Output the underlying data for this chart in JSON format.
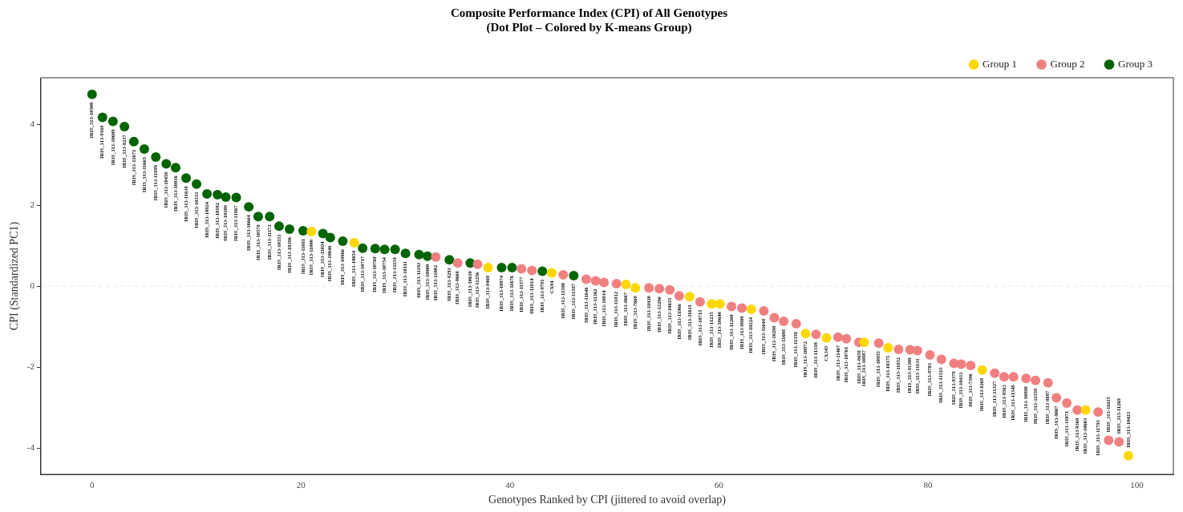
{
  "chart_data": {
    "type": "scatter",
    "title": "Composite Performance Index (CPI) of All Genotypes",
    "subtitle": "(Dot Plot – Colored by K-means Group)",
    "xlabel": "Genotypes Ranked by CPI (jittered to avoid overlap)",
    "ylabel": "CPI (Standardized PC1)",
    "xlim": [
      -4.9,
      103.5
    ],
    "xticks": [
      0,
      20,
      40,
      60,
      80,
      100
    ],
    "ylim": [
      -4.65,
      5.15
    ],
    "yticks": [
      -4,
      -2,
      0,
      2,
      4
    ],
    "legend": "top right",
    "marker": "circle",
    "grid": false,
    "ref_lines": [
      {
        "axis": "y",
        "value": 0,
        "color": "#e8e8e8",
        "line_style": "dashed"
      }
    ],
    "series": [
      {
        "name": "Group 1",
        "color": "#ffd700",
        "x": [
          21.0,
          25.1,
          37.9,
          44.0,
          51.1,
          52.0,
          57.2,
          59.3,
          60.1,
          63.1,
          68.3,
          70.3,
          73.9,
          76.2,
          85.2,
          95.1,
          99.2
        ],
        "values": [
          1.35,
          1.07,
          0.46,
          0.33,
          0.04,
          -0.04,
          -0.26,
          -0.44,
          -0.44,
          -0.57,
          -1.17,
          -1.28,
          -1.39,
          -1.52,
          -2.07,
          -3.06,
          -4.19
        ]
      },
      {
        "name": "Group 2",
        "color": "#f08080",
        "x": [
          32.9,
          35.0,
          36.9,
          41.1,
          42.1,
          45.1,
          47.3,
          48.2,
          49.0,
          50.2,
          53.3,
          54.3,
          55.3,
          56.2,
          58.2,
          61.2,
          62.2,
          64.3,
          65.3,
          66.2,
          67.4,
          69.3,
          71.4,
          72.2,
          73.4,
          75.3,
          77.2,
          78.3,
          79.0,
          80.2,
          81.3,
          82.5,
          83.2,
          84.1,
          86.4,
          87.3,
          88.2,
          89.4,
          90.3,
          91.5,
          92.3,
          93.3,
          94.3,
          96.3,
          97.3,
          98.3
        ],
        "values": [
          0.72,
          0.57,
          0.54,
          0.43,
          0.39,
          0.28,
          0.17,
          0.13,
          0.09,
          0.06,
          -0.04,
          -0.06,
          -0.09,
          -0.24,
          -0.39,
          -0.5,
          -0.54,
          -0.61,
          -0.78,
          -0.87,
          -0.93,
          -1.19,
          -1.26,
          -1.3,
          -1.39,
          -1.41,
          -1.56,
          -1.57,
          -1.59,
          -1.7,
          -1.81,
          -1.91,
          -1.93,
          -1.96,
          -2.15,
          -2.24,
          -2.24,
          -2.28,
          -2.33,
          -2.39,
          -2.76,
          -2.89,
          -3.06,
          -3.11,
          -3.81,
          -3.85
        ]
      },
      {
        "name": "Group 3",
        "color": "#006400",
        "x": [
          0.0,
          1.0,
          2.0,
          3.1,
          4.0,
          5.0,
          6.1,
          7.1,
          8.0,
          9.0,
          10.0,
          11.0,
          12.0,
          12.8,
          13.8,
          15.0,
          15.9,
          17.0,
          17.9,
          18.9,
          20.2,
          22.1,
          22.8,
          24.0,
          25.9,
          27.1,
          28.0,
          29.0,
          30.0,
          31.3,
          32.1,
          34.2,
          36.2,
          39.2,
          40.2,
          43.1,
          46.1
        ],
        "values": [
          4.74,
          4.17,
          4.07,
          3.94,
          3.57,
          3.39,
          3.19,
          3.02,
          2.93,
          2.67,
          2.52,
          2.28,
          2.26,
          2.2,
          2.19,
          1.96,
          1.72,
          1.72,
          1.48,
          1.41,
          1.37,
          1.3,
          1.2,
          1.11,
          0.94,
          0.93,
          0.91,
          0.91,
          0.81,
          0.78,
          0.74,
          0.65,
          0.57,
          0.46,
          0.46,
          0.37,
          0.26
        ]
      }
    ],
    "annotations": [
      {
        "text": "IRIS_313-10500",
        "x": 0.0,
        "y": 4.74
      },
      {
        "text": "IRIS_313-9168",
        "x": 1.0,
        "y": 4.17
      },
      {
        "text": "IRIS_313-10609",
        "x": 2.0,
        "y": 4.07
      },
      {
        "text": "IRIS_313-9237",
        "x": 3.1,
        "y": 3.94
      },
      {
        "text": "IRIS_313-11671",
        "x": 4.0,
        "y": 3.57
      },
      {
        "text": "IRIS_313-11665",
        "x": 5.0,
        "y": 3.39
      },
      {
        "text": "IRIS_313-11899",
        "x": 6.1,
        "y": 3.19
      },
      {
        "text": "IRIS_313-10458",
        "x": 7.1,
        "y": 3.02
      },
      {
        "text": "IRIS_313-10016",
        "x": 8.0,
        "y": 2.93
      },
      {
        "text": "IRIS_313-11638",
        "x": 9.0,
        "y": 2.67
      },
      {
        "text": "IRIS_313-10333",
        "x": 10.0,
        "y": 2.52
      },
      {
        "text": "IRIS_313-10924",
        "x": 11.0,
        "y": 2.28
      },
      {
        "text": "IRIS_313-10102",
        "x": 12.0,
        "y": 2.26
      },
      {
        "text": "IRIS_313-10108",
        "x": 12.8,
        "y": 2.2
      },
      {
        "text": "IRIS_313-11867",
        "x": 13.8,
        "y": 2.19
      },
      {
        "text": "IRIS_313-10664",
        "x": 15.0,
        "y": 1.96
      },
      {
        "text": "IRIS_313-10578",
        "x": 15.9,
        "y": 1.72
      },
      {
        "text": "IRIS_313-11172",
        "x": 17.0,
        "y": 1.72
      },
      {
        "text": "IRIS_313-10553",
        "x": 17.9,
        "y": 1.48
      },
      {
        "text": "IRIS_313-10396",
        "x": 18.9,
        "y": 1.41
      },
      {
        "text": "IRIS_313-11681",
        "x": 20.2,
        "y": 1.37
      },
      {
        "text": "IRIS_313-11000",
        "x": 21.0,
        "y": 1.35
      },
      {
        "text": "IRIS_313-11054",
        "x": 22.1,
        "y": 1.3
      },
      {
        "text": "IRIS_313-10046",
        "x": 22.8,
        "y": 1.2
      },
      {
        "text": "IRIS_313-10966",
        "x": 24.0,
        "y": 1.11
      },
      {
        "text": "IRIS_313-10054",
        "x": 25.1,
        "y": 1.07
      },
      {
        "text": "IRIS_313-10717",
        "x": 25.9,
        "y": 0.94
      },
      {
        "text": "IRIS_313-10769",
        "x": 27.1,
        "y": 0.93
      },
      {
        "text": "IRIS_313-10754",
        "x": 28.0,
        "y": 0.91
      },
      {
        "text": "IRIS_313-11154",
        "x": 29.0,
        "y": 0.91
      },
      {
        "text": "IRIS_313-10111",
        "x": 30.0,
        "y": 0.81
      },
      {
        "text": "IRIS_313-11192",
        "x": 31.3,
        "y": 0.78
      },
      {
        "text": "IRIS_313-10900",
        "x": 32.1,
        "y": 0.74
      },
      {
        "text": "IRIS_313-11002",
        "x": 32.9,
        "y": 0.72
      },
      {
        "text": "IRIS_313-8293",
        "x": 34.2,
        "y": 0.65
      },
      {
        "text": "IRIS_313-9668",
        "x": 35.0,
        "y": 0.57
      },
      {
        "text": "IRIS_313-10610",
        "x": 36.2,
        "y": 0.57
      },
      {
        "text": "IRIS_313-11256",
        "x": 36.9,
        "y": 0.54
      },
      {
        "text": "IRIS_313-9469",
        "x": 37.9,
        "y": 0.46
      },
      {
        "text": "IRIS_313-10974",
        "x": 39.2,
        "y": 0.46
      },
      {
        "text": "IRIS_313-11676",
        "x": 40.2,
        "y": 0.46
      },
      {
        "text": "IRIS_313-11577",
        "x": 41.1,
        "y": 0.43
      },
      {
        "text": "IRIS_313-11814",
        "x": 42.1,
        "y": 0.39
      },
      {
        "text": "IRIS_313-9791",
        "x": 43.1,
        "y": 0.37
      },
      {
        "text": "CX94",
        "x": 44.0,
        "y": 0.33
      },
      {
        "text": "IRIS_313-11580",
        "x": 45.1,
        "y": 0.28
      },
      {
        "text": "IRIS_313-11587",
        "x": 46.1,
        "y": 0.26
      },
      {
        "text": "IRIS_313-11646",
        "x": 47.3,
        "y": 0.17
      },
      {
        "text": "IRIS_313-11362",
        "x": 48.2,
        "y": 0.13
      },
      {
        "text": "IRIS_313-10814",
        "x": 49.0,
        "y": 0.09
      },
      {
        "text": "IRIS_313-11812",
        "x": 50.2,
        "y": 0.06
      },
      {
        "text": "IRIS_313-8667",
        "x": 51.1,
        "y": 0.04
      },
      {
        "text": "IRIS_313-7668",
        "x": 52.0,
        "y": -0.04
      },
      {
        "text": "IRIS_313-11020",
        "x": 53.3,
        "y": -0.04
      },
      {
        "text": "IRIS_313-12296",
        "x": 54.3,
        "y": -0.06
      },
      {
        "text": "IRIS_313-10655",
        "x": 55.3,
        "y": -0.09
      },
      {
        "text": "IRIS_313-11966",
        "x": 56.2,
        "y": -0.24
      },
      {
        "text": "IRIS_313-11611",
        "x": 57.2,
        "y": -0.26
      },
      {
        "text": "IRIS_313-10715",
        "x": 58.2,
        "y": -0.39
      },
      {
        "text": "IRIS_313-11235",
        "x": 59.3,
        "y": -0.44
      },
      {
        "text": "IRIS_313-10640",
        "x": 60.1,
        "y": -0.44
      },
      {
        "text": "IRIS_313-11260",
        "x": 61.2,
        "y": -0.5
      },
      {
        "text": "IRIS_313-9808",
        "x": 62.2,
        "y": -0.54
      },
      {
        "text": "IRIS_313-10224",
        "x": 63.1,
        "y": -0.57
      },
      {
        "text": "IRIS_313-11644",
        "x": 64.3,
        "y": -0.61
      },
      {
        "text": "IRIS_313-10298",
        "x": 65.3,
        "y": -0.78
      },
      {
        "text": "IRIS_313-11608",
        "x": 66.2,
        "y": -0.87
      },
      {
        "text": "IRIS_313-11358",
        "x": 67.4,
        "y": -0.93
      },
      {
        "text": "IRIS_313-10872",
        "x": 68.3,
        "y": -1.17
      },
      {
        "text": "IRIS_313-11310",
        "x": 69.3,
        "y": -1.19
      },
      {
        "text": "CX345",
        "x": 70.3,
        "y": -1.28
      },
      {
        "text": "IRIS_313-11467",
        "x": 71.4,
        "y": -1.26
      },
      {
        "text": "IRIS_313-10761",
        "x": 72.2,
        "y": -1.3
      },
      {
        "text": "IRIS_313-8658",
        "x": 73.4,
        "y": -1.39
      },
      {
        "text": "IRIS_313-10887",
        "x": 73.9,
        "y": -1.39
      },
      {
        "text": "IRIS_313-10955",
        "x": 75.3,
        "y": -1.41
      },
      {
        "text": "IRIS_313-10375",
        "x": 76.2,
        "y": -1.52
      },
      {
        "text": "IRIS_313-11852",
        "x": 77.2,
        "y": -1.56
      },
      {
        "text": "IRIS_313-11309",
        "x": 78.3,
        "y": -1.57
      },
      {
        "text": "IRIS_313-11131",
        "x": 79.0,
        "y": -1.59
      },
      {
        "text": "IRIS_313-8703",
        "x": 80.2,
        "y": -1.7
      },
      {
        "text": "IRIS_313-11515",
        "x": 81.3,
        "y": -1.81
      },
      {
        "text": "IRIS_313-9379",
        "x": 82.5,
        "y": -1.91
      },
      {
        "text": "IRIS_313-10433",
        "x": 83.2,
        "y": -1.93
      },
      {
        "text": "IRIS_313-7396",
        "x": 84.1,
        "y": -1.96
      },
      {
        "text": "IRIS_313-8268",
        "x": 85.2,
        "y": -2.07
      },
      {
        "text": "IRIS_313-11327",
        "x": 86.4,
        "y": -2.15
      },
      {
        "text": "IRIS_313-9563",
        "x": 87.3,
        "y": -2.24
      },
      {
        "text": "IRIS_313-11548",
        "x": 88.2,
        "y": -2.24
      },
      {
        "text": "IRIS_313-10880",
        "x": 89.4,
        "y": -2.28
      },
      {
        "text": "IRIS_313-11558",
        "x": 90.3,
        "y": -2.33
      },
      {
        "text": "IRIS_313-8697",
        "x": 91.5,
        "y": -2.39
      },
      {
        "text": "IRIS_313-9067",
        "x": 92.3,
        "y": -2.76
      },
      {
        "text": "IRIS_313-11071",
        "x": 93.3,
        "y": -2.89
      },
      {
        "text": "IRIS_313-9368",
        "x": 94.3,
        "y": -3.06
      },
      {
        "text": "IRIS_313-10603",
        "x": 95.1,
        "y": -3.06
      },
      {
        "text": "IRIS_313-11793",
        "x": 96.3,
        "y": -3.11
      },
      {
        "text": "IRIS_313-11615",
        "x": 97.3,
        "y": -3.81
      },
      {
        "text": "IRIS_313-11269",
        "x": 98.3,
        "y": -3.85
      },
      {
        "text": "IRIS_313-10423",
        "x": 99.2,
        "y": -4.19
      }
    ]
  }
}
